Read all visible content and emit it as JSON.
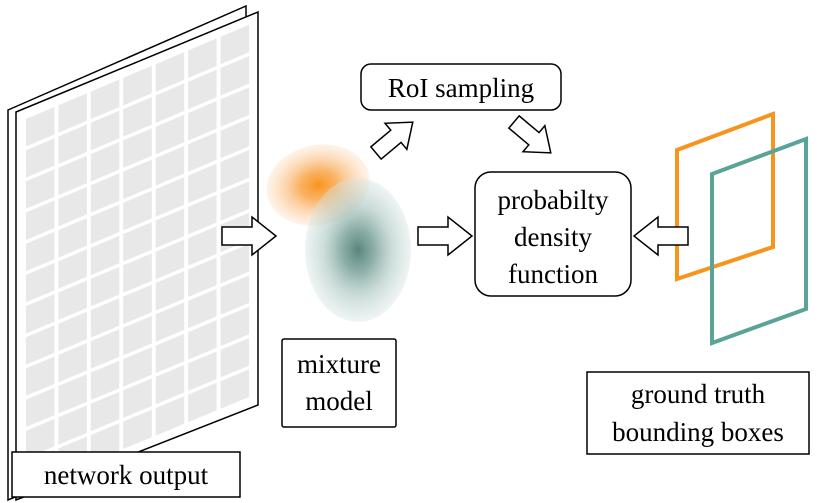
{
  "labels": {
    "network_output": "network output",
    "mixture_model_line1": "mixture",
    "mixture_model_line2": "model",
    "roi_sampling": "RoI sampling",
    "pdf_line1": "probabilty",
    "pdf_line2": "density",
    "pdf_line3": "function",
    "gt_line1": "ground truth",
    "gt_line2": "bounding boxes"
  },
  "colors": {
    "orange": "#f7941d",
    "teal": "#5aa397",
    "stroke": "#000000",
    "grid": "#e8e8e8"
  },
  "icons": [
    "hollow-arrow-icon"
  ]
}
